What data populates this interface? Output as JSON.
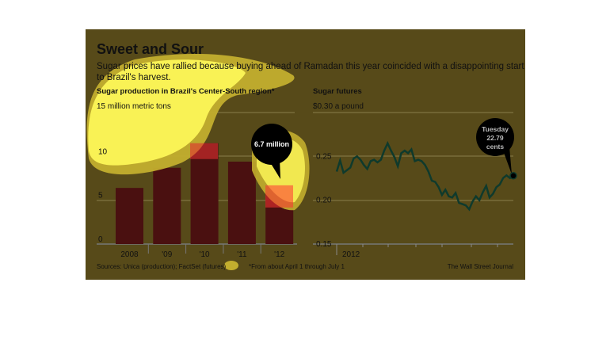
{
  "title": "Sweet and Sour",
  "subtitle_line1": "Sugar prices have rallied because buying ahead of Ramadan this year coincided with a disappointing start",
  "subtitle_line2": "to Brazil's harvest.",
  "sources": "Sources: Unica (production); FactSet (futures)",
  "footnote": "*From about April 1 through July 1",
  "credit": "The Wall Street Journal",
  "colors": {
    "panel": "#574a19",
    "bar": "#4a1010",
    "line": "#0f3a2c",
    "highlight": "#fff95a"
  },
  "chart_data": [
    {
      "type": "bar",
      "title": "Sugar production in Brazil's Center-South region*",
      "unit_label": "15 million metric tons",
      "categories": [
        "2008",
        "'09",
        "'10",
        "'11",
        "'12"
      ],
      "values": [
        6.4,
        8.7,
        11.5,
        9.4,
        6.7
      ],
      "yticks": [
        "0",
        "5",
        "10"
      ],
      "ylim": [
        0,
        15
      ],
      "annotation": "6.7 million"
    },
    {
      "type": "line",
      "title": "Sugar futures",
      "unit_label": "$0.30 a pound",
      "xlabel": "2012",
      "yticks": [
        "0.15",
        "0.20",
        "0.25"
      ],
      "ylim": [
        0.15,
        0.3
      ],
      "values": [
        0.2327,
        0.2452,
        0.2313,
        0.2342,
        0.2372,
        0.2476,
        0.25,
        0.2461,
        0.2402,
        0.2357,
        0.2446,
        0.2461,
        0.2432,
        0.2461,
        0.2565,
        0.2649,
        0.2565,
        0.2491,
        0.2387,
        0.2536,
        0.2565,
        0.2536,
        0.258,
        0.2446,
        0.2461,
        0.2446,
        0.2402,
        0.2327,
        0.2223,
        0.2208,
        0.2149,
        0.206,
        0.2119,
        0.2045,
        0.203,
        0.2083,
        0.197,
        0.1955,
        0.1941,
        0.1896,
        0.1985,
        0.2045,
        0.2,
        0.2089,
        0.2164,
        0.203,
        0.2074,
        0.2149,
        0.2179,
        0.2253,
        0.2283,
        0.2253,
        0.2279
      ],
      "annotation_line1": "Tuesday",
      "annotation_line2": "22.79",
      "annotation_line3": "cents"
    }
  ]
}
